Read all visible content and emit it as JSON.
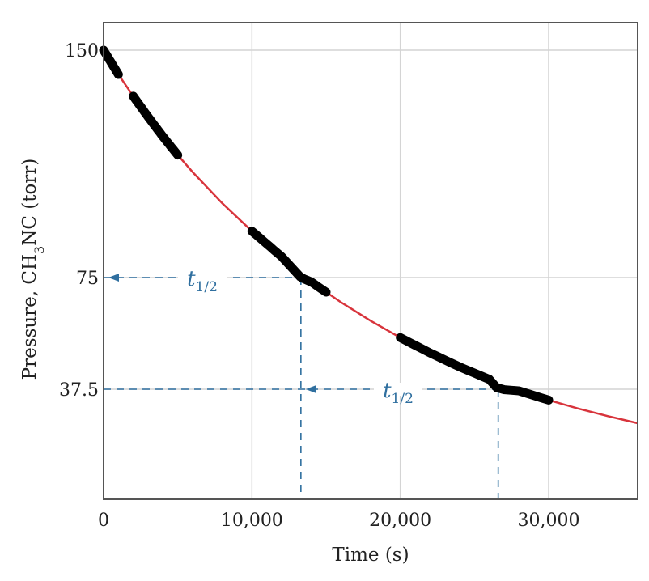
{
  "chart_data": {
    "type": "line",
    "xlabel": "Time (s)",
    "ylabel": {
      "prefix": "Pressure, CH",
      "sub": "3",
      "suffix": "NC (torr)"
    },
    "xlim": [
      0,
      36000
    ],
    "ylim": [
      0,
      150
    ],
    "xticks": [
      {
        "value": 0,
        "label": "0"
      },
      {
        "value": 10000,
        "label": "10,000"
      },
      {
        "value": 20000,
        "label": "20,000"
      },
      {
        "value": 30000,
        "label": "30,000"
      }
    ],
    "yticks": [
      {
        "value": 150,
        "label": "150"
      },
      {
        "value": 75,
        "label": "75"
      },
      {
        "value": 37.5,
        "label": "37.5"
      }
    ],
    "grid": true,
    "series": [
      {
        "color": "#d8343c",
        "x": [
          0,
          1000,
          2000,
          3000,
          4000,
          5000,
          6000,
          8000,
          10000,
          12000,
          13300,
          14000,
          16000,
          18000,
          20000,
          22000,
          24000,
          26000,
          26600,
          28000,
          30000,
          32000,
          34000,
          36000
        ],
        "y": [
          150,
          142,
          134.8,
          128,
          121.5,
          115.4,
          109.8,
          99.5,
          90.3,
          81.9,
          75,
          73.5,
          66.7,
          60.5,
          54.8,
          49.7,
          45,
          40.8,
          37.5,
          36.9,
          33.5,
          30.4,
          27.6,
          25
        ]
      }
    ],
    "measured_segments": [
      {
        "x_start": 0,
        "x_end": 1000,
        "color": "#000000"
      },
      {
        "x_start": 2000,
        "x_end": 5000,
        "color": "#000000"
      },
      {
        "x_start": 10000,
        "x_end": 15000,
        "color": "#000000"
      },
      {
        "x_start": 20000,
        "x_end": 30000,
        "color": "#000000"
      }
    ],
    "annotations": [
      {
        "label": "t",
        "sub": "1/2",
        "color": "#2f6f9f",
        "x_from": 13300,
        "x_to": 0,
        "y": 75
      },
      {
        "label": "t",
        "sub": "1/2",
        "color": "#2f6f9f",
        "x_from": 26600,
        "x_to": 13300,
        "y": 37.5
      }
    ]
  }
}
